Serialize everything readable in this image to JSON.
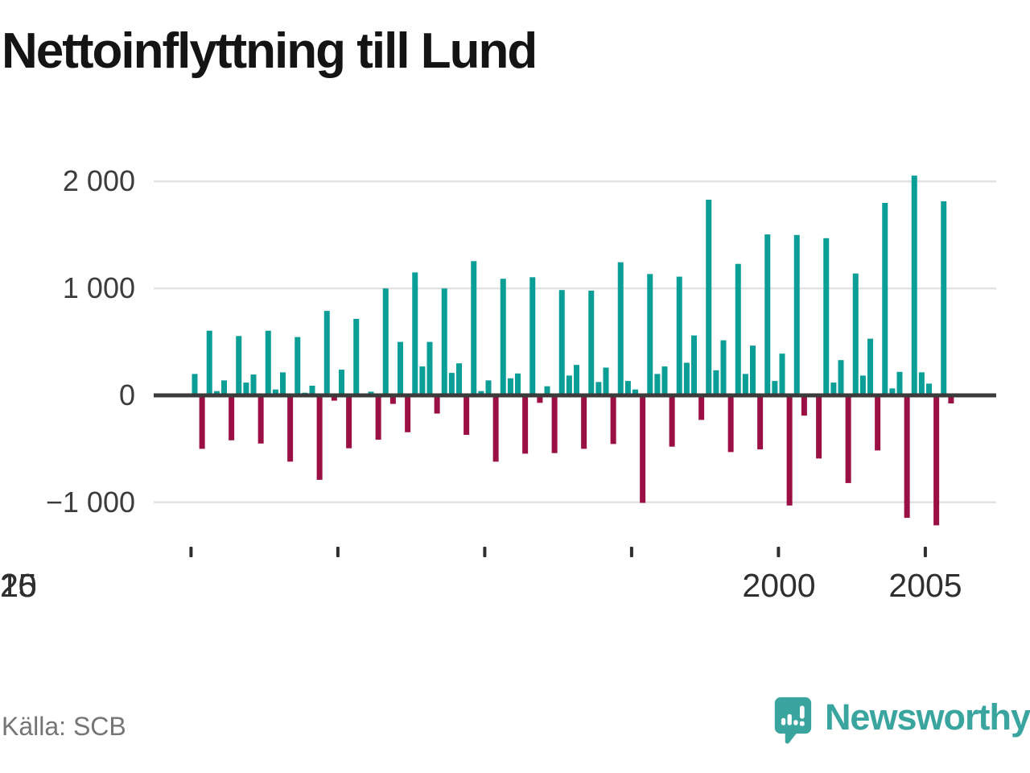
{
  "title": "Nettoinflyttning till Lund",
  "footer": {
    "source": "Källa: SCB"
  },
  "branding": {
    "name": "Newsworthy",
    "logo_icon": "newsworthy-speech-bubble-bar-chart-icon"
  },
  "colors": {
    "positive_bar": "#0a9e96",
    "negative_bar": "#9b1044",
    "axis_line": "#3b3b3b",
    "gridline": "#e2e2e2",
    "tick_mark": "#2f2f2f",
    "brand_teal": "#3aa59f",
    "title_text": "#141414",
    "axis_label_text": "#3d3d3d",
    "source_text": "#757575"
  },
  "chart_data": {
    "type": "bar",
    "title": "Nettoinflyttning till Lund",
    "period": "quarterly",
    "start_year": 2000,
    "quarters_per_year": 4,
    "x_tick_labels": [
      "2000",
      "2005",
      "2010",
      "2015",
      "2020",
      "2025"
    ],
    "y_tick_labels": [
      "2 000",
      "1 000",
      "0",
      "−1 000"
    ],
    "y_tick_values": [
      2000,
      1000,
      0,
      -1000
    ],
    "ylim": [
      -1400,
      2350
    ],
    "grid": "horizontal",
    "legend": "none",
    "series": [
      {
        "name": "Nettoinflyttning per kvartal",
        "values": [
          200,
          -500,
          605,
          40,
          140,
          -420,
          555,
          120,
          195,
          -450,
          605,
          55,
          215,
          -620,
          545,
          25,
          90,
          -790,
          790,
          -50,
          240,
          -495,
          715,
          0,
          35,
          -415,
          1000,
          -80,
          500,
          -345,
          1150,
          270,
          500,
          -170,
          1000,
          210,
          300,
          -370,
          1255,
          40,
          140,
          -620,
          1090,
          160,
          205,
          -545,
          1105,
          -70,
          85,
          -540,
          985,
          185,
          285,
          -500,
          980,
          125,
          260,
          -455,
          1245,
          135,
          55,
          -1005,
          1135,
          200,
          270,
          -480,
          1110,
          305,
          560,
          -230,
          1830,
          235,
          515,
          -530,
          1230,
          200,
          465,
          -505,
          1505,
          135,
          390,
          -1030,
          1500,
          -190,
          0,
          -590,
          1470,
          120,
          330,
          -820,
          1140,
          185,
          530,
          -515,
          1800,
          65,
          220,
          -1145,
          2055,
          215,
          110,
          -1215,
          1815,
          -75
        ]
      }
    ]
  }
}
